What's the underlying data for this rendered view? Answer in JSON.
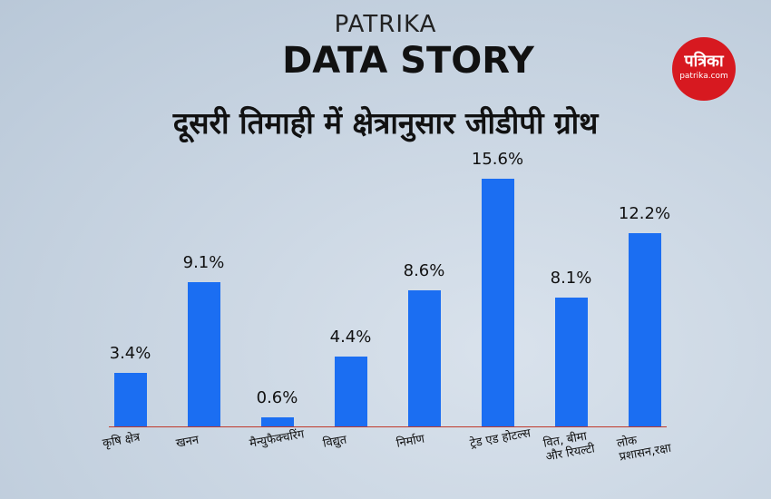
{
  "brand": {
    "name": "PATRIKA",
    "tagline": "DATA STORY",
    "logo_text": "पत्रिका",
    "logo_url": "patrika.com"
  },
  "chart_data": {
    "type": "bar",
    "title": "दूसरी तिमाही में क्षेत्रानुसार जीडीपी ग्रोथ",
    "categories": [
      "कृषि क्षेत्र",
      "खनन",
      "मैन्युफैक्चरिंग",
      "विद्युत",
      "निर्माण",
      "ट्रेड एड होटल्स",
      "वित, बीमा और रियल्टी",
      "लोक प्रशासन,रक्षा"
    ],
    "values": [
      3.4,
      9.1,
      0.6,
      4.4,
      8.6,
      15.6,
      8.1,
      12.2
    ],
    "value_labels": [
      "3.4%",
      "9.1%",
      "0.6%",
      "4.4%",
      "8.6%",
      "15.6%",
      "8.1%",
      "12.2%"
    ],
    "color": "#1b6ef2",
    "ylim": [
      0,
      16
    ]
  }
}
